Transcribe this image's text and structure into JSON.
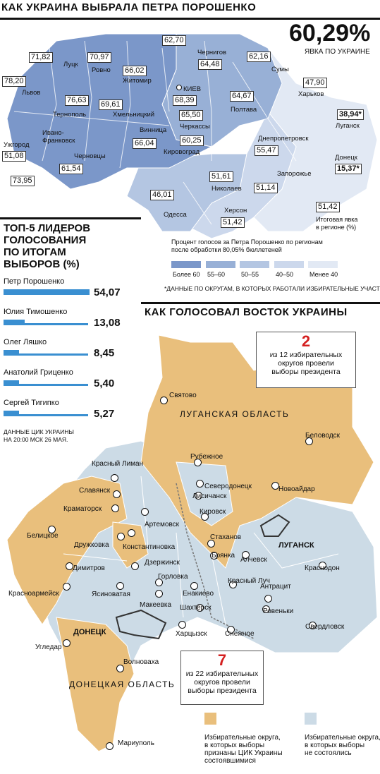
{
  "top": {
    "title": "КАК УКРАИНА ВЫБРАЛА ПЕТРА ПОРОШЕНКО",
    "turnout_value": "60,29%",
    "turnout_label": "ЯВКА ПО УКРАИНЕ"
  },
  "regions": [
    {
      "name": "Луцк",
      "value": "71,82"
    },
    {
      "name": "Ровно",
      "value": "70,97"
    },
    {
      "name": "Житомир",
      "value": "66,02"
    },
    {
      "name": "",
      "value": "62,70"
    },
    {
      "name": "Чернигов",
      "value": "64,48"
    },
    {
      "name": "Сумы",
      "value": "62,16"
    },
    {
      "name": "Львов",
      "value": "78,20"
    },
    {
      "name": "Тернополь",
      "value": "76,63"
    },
    {
      "name": "Хмельницкий",
      "value": "69,61"
    },
    {
      "name": "КИЕВ",
      "value": "68,39"
    },
    {
      "name": "Полтава",
      "value": "64,67"
    },
    {
      "name": "Харьков",
      "value": "47,90"
    },
    {
      "name": "Черкассы",
      "value": "65,50"
    },
    {
      "name": "Винница",
      "value": "66,04"
    },
    {
      "name": "Кировоград",
      "value": "60,25"
    },
    {
      "name": "Луганск",
      "value": "38,94*"
    },
    {
      "name": "Ужгород",
      "value": "51,08"
    },
    {
      "name": "Ивано-Франковск",
      "value": "73,95"
    },
    {
      "name": "Черновцы",
      "value": "61,54"
    },
    {
      "name": "Днепропетровск",
      "value": "55,47"
    },
    {
      "name": "Донецк",
      "value": "15,37*"
    },
    {
      "name": "Николаев",
      "value": "51,61"
    },
    {
      "name": "Запорожье",
      "value": "51,14"
    },
    {
      "name": "Одесса",
      "value": "46,01"
    },
    {
      "name": "Херсон",
      "value": "51,42"
    }
  ],
  "turnout_box": {
    "value": "51,42",
    "label": "Итоговая явка\nв регионе (%)"
  },
  "legend": {
    "caption": "Процент голосов за Петра Порошенко по регионам\nпосле обработки 80,05% бюллетеней",
    "items": [
      {
        "label": "Более 60",
        "color": "#7b97c9"
      },
      {
        "label": "55–60",
        "color": "#98b0d6"
      },
      {
        "label": "50–55",
        "color": "#b4c6e2"
      },
      {
        "label": "40–50",
        "color": "#ccd8ec"
      },
      {
        "label": "Менее 40",
        "color": "#e2e9f4"
      }
    ],
    "footnote": "*ДАННЫЕ ПО ОКРУГАМ, В КОТОРЫХ РАБОТАЛИ ИЗБИРАТЕЛЬНЫЕ УЧАСТКИ."
  },
  "top5": {
    "title": "ТОП-5 ЛИДЕРОВ\nГОЛОСОВАНИЯ\nПО ИТОГАМ\nВЫБОРОВ (%)",
    "candidates": [
      {
        "name": "Петр Порошенко",
        "value": 54.07,
        "label": "54,07"
      },
      {
        "name": "Юлия Тимошенко",
        "value": 13.08,
        "label": "13,08"
      },
      {
        "name": "Олег Ляшко",
        "value": 8.45,
        "label": "8,45"
      },
      {
        "name": "Анатолий Гриценко",
        "value": 5.4,
        "label": "5,40"
      },
      {
        "name": "Сергей Тигипко",
        "value": 5.27,
        "label": "5,27"
      }
    ],
    "source": "ДАННЫЕ ЦИК УКРАИНЫ\nНА 20:00 МСК 26 МАЯ."
  },
  "east": {
    "title": "КАК ГОЛОСОВАЛ ВОСТОК УКРАИНЫ",
    "luhansk_box": {
      "number": "2",
      "text": "из 12 избирательных\nокругов провели\nвыборы президента"
    },
    "donetsk_box": {
      "number": "7",
      "text": "из 22 избирательных\nокругов провели\nвыборы президента"
    },
    "luhansk_oblast": "ЛУГАНСКАЯ ОБЛАСТЬ",
    "donetsk_oblast": "ДОНЕЦКАЯ ОБЛАСТЬ",
    "luhansk_city": "ЛУГАНСК",
    "donetsk_city": "ДОНЕЦК",
    "cities": [
      "Святово",
      "Беловодск",
      "Рубежное",
      "Северодонецк",
      "Лисичанск",
      "Новоайдар",
      "Кировск",
      "Стаханов",
      "Брянка",
      "Алчевск",
      "Краснодон",
      "Красный Луч",
      "Антрацит",
      "Ровеньки",
      "Свердловск",
      "Красный Лиман",
      "Славянск",
      "Краматорск",
      "Дружковка",
      "Константиновка",
      "Артемовск",
      "Дзержинск",
      "Белицкое",
      "Димитров",
      "Красноармейск",
      "Ясиноватая",
      "Горловка",
      "Енакиево",
      "Макеевка",
      "Шахтерск",
      "Харцызск",
      "Снежное",
      "Угледар",
      "Волноваха",
      "Мариуполь"
    ],
    "legend_orange": "Избирательные округа,\nв которых выборы\nпризнаны ЦИК Украины\nсостоявшимися",
    "legend_blue": "Избирательные округа,\nв которых выборы\nне состоялись",
    "color_orange": "#e9bf7c",
    "color_blue": "#ccdbe6"
  }
}
